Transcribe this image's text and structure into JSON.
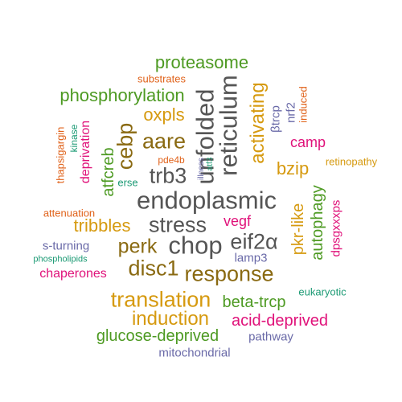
{
  "palette": {
    "green": "#4d9a22",
    "orange": "#e0621a",
    "olive": "#8a6a12",
    "gold": "#d69a10",
    "magenta": "#e0127a",
    "purple": "#6a6aa8",
    "teal": "#1b9a74",
    "grey": "#555555"
  },
  "words": [
    {
      "text": "proteasome",
      "color": "green"
    },
    {
      "text": "substrates",
      "color": "orange"
    },
    {
      "text": "phosphorylation",
      "color": "green"
    },
    {
      "text": "oxpls",
      "color": "gold"
    },
    {
      "text": "unfolded",
      "color": "grey"
    },
    {
      "text": "reticulum",
      "color": "grey"
    },
    {
      "text": "activating",
      "color": "gold"
    },
    {
      "text": "βtrcp",
      "color": "purple"
    },
    {
      "text": "nrf2",
      "color": "purple"
    },
    {
      "text": "induced",
      "color": "orange"
    },
    {
      "text": "camp",
      "color": "magenta"
    },
    {
      "text": "retinopathy",
      "color": "gold"
    },
    {
      "text": "bzip",
      "color": "gold"
    },
    {
      "text": "thapsigargin",
      "color": "orange"
    },
    {
      "text": "kinase",
      "color": "teal"
    },
    {
      "text": "deprivation",
      "color": "magenta"
    },
    {
      "text": "cebp",
      "color": "olive"
    },
    {
      "text": "aare",
      "color": "olive"
    },
    {
      "text": "pde4b",
      "color": "orange"
    },
    {
      "text": "illness",
      "color": "purple"
    },
    {
      "text": "atf3",
      "color": "teal"
    },
    {
      "text": "atfcreb",
      "color": "green"
    },
    {
      "text": "erse",
      "color": "teal"
    },
    {
      "text": "trb3",
      "color": "grey"
    },
    {
      "text": "endoplasmic",
      "color": "grey"
    },
    {
      "text": "attenuation",
      "color": "orange"
    },
    {
      "text": "tribbles",
      "color": "gold"
    },
    {
      "text": "stress",
      "color": "grey"
    },
    {
      "text": "vegf",
      "color": "magenta"
    },
    {
      "text": "pkr-like",
      "color": "gold"
    },
    {
      "text": "autophagy",
      "color": "green"
    },
    {
      "text": "dpsgxxxps",
      "color": "magenta"
    },
    {
      "text": "s-turning",
      "color": "purple"
    },
    {
      "text": "perk",
      "color": "olive"
    },
    {
      "text": "chop",
      "color": "grey"
    },
    {
      "text": "eif2α",
      "color": "grey"
    },
    {
      "text": "phospholipids",
      "color": "teal"
    },
    {
      "text": "lamp3",
      "color": "purple"
    },
    {
      "text": "chaperones",
      "color": "magenta"
    },
    {
      "text": "disc1",
      "color": "olive"
    },
    {
      "text": "response",
      "color": "olive"
    },
    {
      "text": "eukaryotic",
      "color": "teal"
    },
    {
      "text": "translation",
      "color": "gold"
    },
    {
      "text": "beta-trcp",
      "color": "green"
    },
    {
      "text": "induction",
      "color": "gold"
    },
    {
      "text": "acid-deprived",
      "color": "magenta"
    },
    {
      "text": "glucose-deprived",
      "color": "green"
    },
    {
      "text": "pathway",
      "color": "purple"
    },
    {
      "text": "mitochondrial",
      "color": "purple"
    }
  ]
}
